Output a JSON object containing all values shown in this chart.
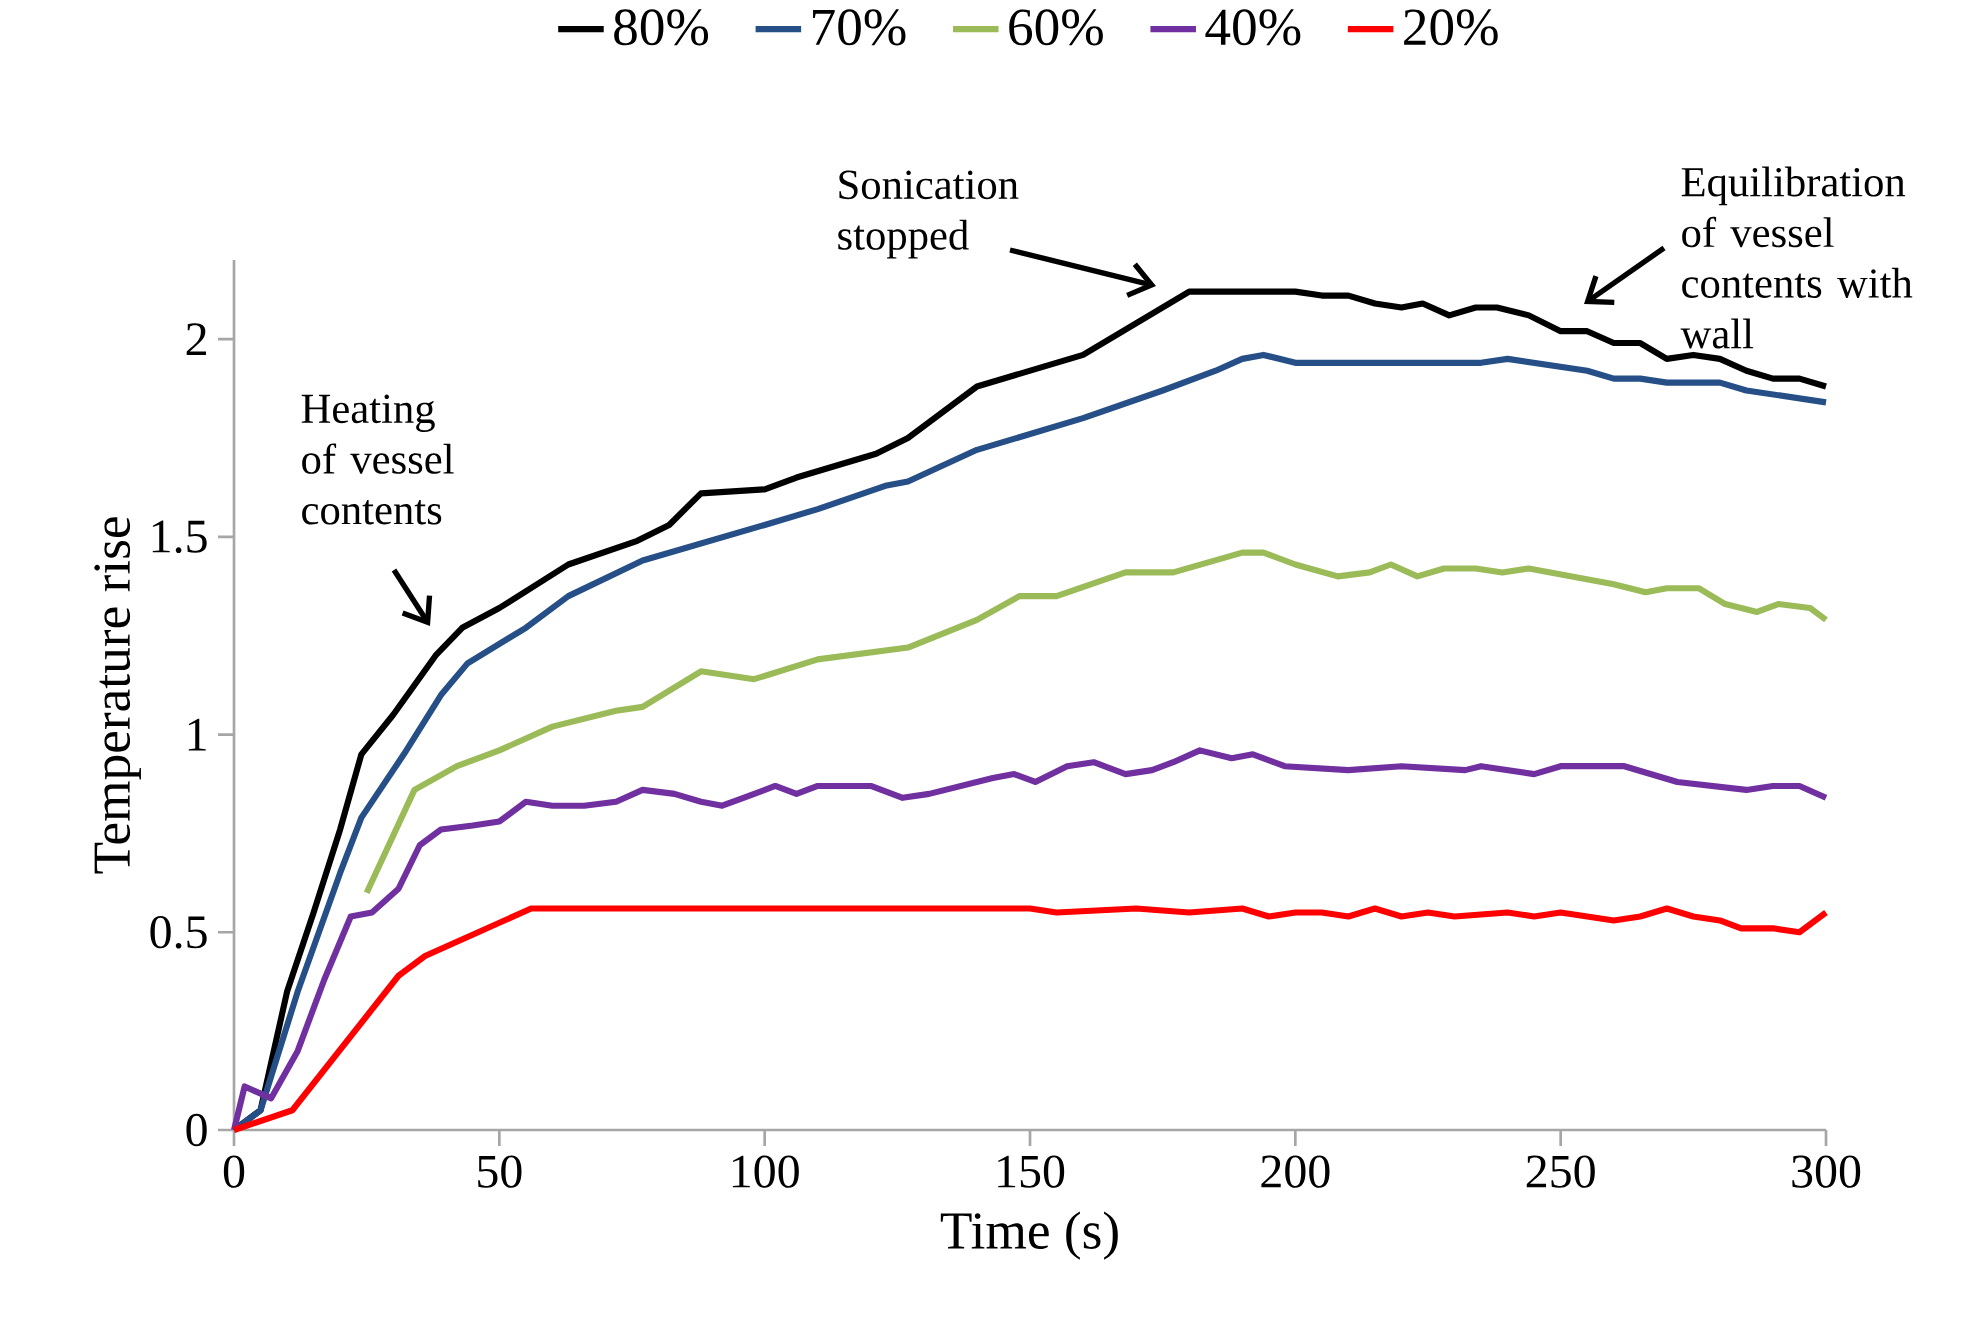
{
  "chart_data": {
    "type": "line",
    "xlabel": "Time (s)",
    "ylabel": "Temperature rise",
    "xlim": [
      0,
      300
    ],
    "xticks": [
      0,
      50,
      100,
      150,
      200,
      250,
      300
    ],
    "ylim": [
      0,
      2.2
    ],
    "yticks": [
      0,
      0.5,
      1,
      1.5,
      2
    ],
    "grid": false,
    "legend": "top",
    "marker": "none",
    "line_style": "solid",
    "annotations": [
      "Heating of vessel contents",
      "Sonication stopped",
      "Equilibration of vessel contents with wall"
    ],
    "series": [
      {
        "name": "80%",
        "color": "#000000",
        "x": [
          0,
          5,
          10,
          15,
          20,
          24,
          30,
          38,
          43,
          50,
          63,
          76,
          82,
          88,
          100,
          106,
          121,
          127,
          140,
          160,
          180,
          195,
          200,
          205,
          210,
          215,
          220,
          224,
          229,
          234,
          238,
          244,
          250,
          255,
          260,
          265,
          270,
          275,
          280,
          285,
          290,
          295,
          300
        ],
        "values": [
          0,
          0.05,
          0.35,
          0.55,
          0.76,
          0.95,
          1.05,
          1.2,
          1.27,
          1.32,
          1.43,
          1.49,
          1.53,
          1.61,
          1.62,
          1.65,
          1.71,
          1.75,
          1.88,
          1.96,
          2.12,
          2.12,
          2.12,
          2.11,
          2.11,
          2.09,
          2.08,
          2.09,
          2.06,
          2.08,
          2.08,
          2.06,
          2.02,
          2.02,
          1.99,
          1.99,
          1.95,
          1.96,
          1.95,
          1.92,
          1.9,
          1.9,
          1.88
        ]
      },
      {
        "name": "70%",
        "color": "#254f86",
        "x": [
          0,
          5,
          12,
          20,
          24,
          32,
          39,
          44,
          55,
          63,
          77,
          100,
          110,
          123,
          127,
          140,
          160,
          175,
          185,
          190,
          194,
          200,
          235,
          240,
          255,
          260,
          265,
          270,
          280,
          285,
          295,
          300
        ],
        "values": [
          0,
          0.05,
          0.35,
          0.65,
          0.79,
          0.95,
          1.1,
          1.18,
          1.27,
          1.35,
          1.44,
          1.53,
          1.57,
          1.63,
          1.64,
          1.72,
          1.8,
          1.87,
          1.92,
          1.95,
          1.96,
          1.94,
          1.94,
          1.95,
          1.92,
          1.9,
          1.9,
          1.89,
          1.89,
          1.87,
          1.85,
          1.84
        ]
      },
      {
        "name": "60%",
        "color": "#9bbb59",
        "x": [
          25,
          34,
          42,
          50,
          60,
          72,
          77,
          88,
          98,
          110,
          127,
          140,
          148,
          155,
          168,
          177,
          190,
          194,
          200,
          208,
          214,
          218,
          223,
          228,
          234,
          239,
          244,
          260,
          266,
          270,
          276,
          281,
          287,
          291,
          297,
          300
        ],
        "values": [
          0.6,
          0.86,
          0.92,
          0.96,
          1.02,
          1.06,
          1.07,
          1.16,
          1.14,
          1.19,
          1.22,
          1.29,
          1.35,
          1.35,
          1.41,
          1.41,
          1.46,
          1.46,
          1.43,
          1.4,
          1.41,
          1.43,
          1.4,
          1.42,
          1.42,
          1.41,
          1.42,
          1.38,
          1.36,
          1.37,
          1.37,
          1.33,
          1.31,
          1.33,
          1.32,
          1.29
        ]
      },
      {
        "name": "40%",
        "color": "#7030a0",
        "x": [
          0,
          2,
          7,
          12,
          17,
          22,
          26,
          31,
          35,
          39,
          45,
          50,
          55,
          60,
          66,
          72,
          77,
          83,
          88,
          92,
          96,
          102,
          106,
          110,
          120,
          126,
          131,
          143,
          147,
          151,
          157,
          162,
          168,
          173,
          177,
          182,
          188,
          192,
          198,
          210,
          220,
          232,
          235,
          245,
          250,
          262,
          272,
          285,
          290,
          295,
          300
        ],
        "values": [
          0,
          0.11,
          0.08,
          0.2,
          0.38,
          0.54,
          0.55,
          0.61,
          0.72,
          0.76,
          0.77,
          0.78,
          0.83,
          0.82,
          0.82,
          0.83,
          0.86,
          0.85,
          0.83,
          0.82,
          0.84,
          0.87,
          0.85,
          0.87,
          0.87,
          0.84,
          0.85,
          0.89,
          0.9,
          0.88,
          0.92,
          0.93,
          0.9,
          0.91,
          0.93,
          0.96,
          0.94,
          0.95,
          0.92,
          0.91,
          0.92,
          0.91,
          0.92,
          0.9,
          0.92,
          0.92,
          0.88,
          0.86,
          0.87,
          0.87,
          0.84
        ]
      },
      {
        "name": "20%",
        "color": "#ff0000",
        "x": [
          0,
          11,
          31,
          36,
          56,
          150,
          155,
          170,
          180,
          190,
          195,
          200,
          205,
          210,
          215,
          220,
          225,
          230,
          240,
          245,
          250,
          260,
          265,
          270,
          275,
          280,
          284,
          290,
          295,
          300
        ],
        "values": [
          0,
          0.05,
          0.39,
          0.44,
          0.56,
          0.56,
          0.55,
          0.56,
          0.55,
          0.56,
          0.54,
          0.55,
          0.55,
          0.54,
          0.56,
          0.54,
          0.55,
          0.54,
          0.55,
          0.54,
          0.55,
          0.53,
          0.54,
          0.56,
          0.54,
          0.53,
          0.51,
          0.51,
          0.5,
          0.55
        ]
      }
    ]
  }
}
